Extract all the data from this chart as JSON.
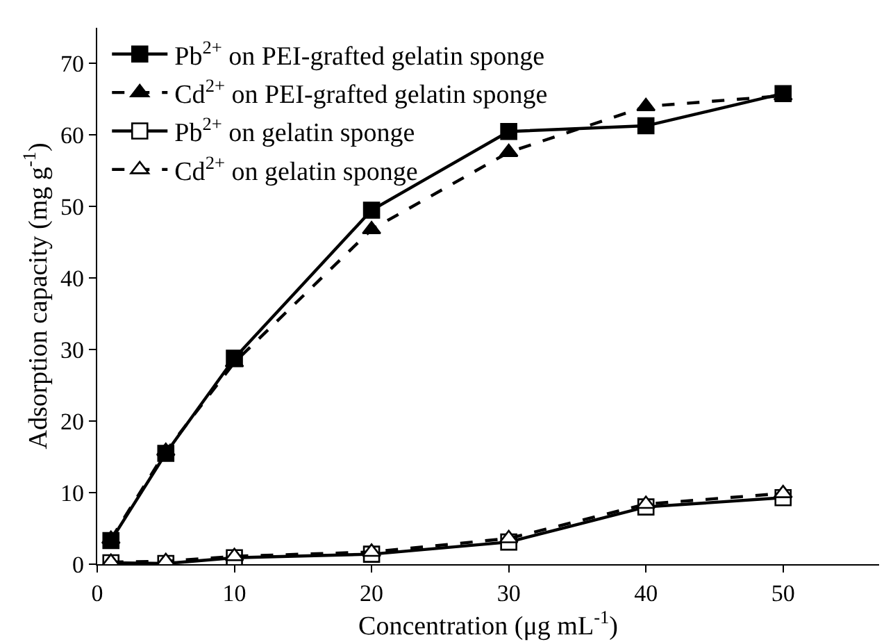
{
  "chart_data": {
    "type": "line",
    "xlabel": "Concentration (μg mL$^{-1}$)",
    "ylabel": "Adsorption capacity (mg g$^{-1}$)",
    "x": [
      1,
      5,
      10,
      20,
      30,
      40,
      50
    ],
    "series": [
      {
        "name": "Pb$^{2+}$ on PEI-grafted gelatin sponge",
        "color": "#000000",
        "values": [
          3.3,
          15.5,
          28.8,
          49.5,
          60.5,
          61.3,
          65.8
        ],
        "marker": "square",
        "line_style": "solid"
      },
      {
        "name": "Cd$^{2+}$ on PEI-grafted gelatin sponge",
        "color": "#000000",
        "values": [
          3.5,
          15.8,
          28.2,
          46.8,
          57.6,
          64.0,
          65.5
        ],
        "marker": "triangle",
        "line_style": "dashed"
      },
      {
        "name": "Pb$^{2+}$ on gelatin sponge",
        "color": "#000000",
        "values": [
          0.2,
          0.1,
          0.9,
          1.4,
          3.1,
          8.0,
          9.3
        ],
        "marker": "square",
        "colors": [
          "#ffffff",
          "#ffffff",
          "#ffffff",
          "#ffffff",
          "#ffffff",
          "#ffffff",
          "#ffffff"
        ],
        "line_style": "solid"
      },
      {
        "name": "Cd$^{2+}$ on gelatin sponge",
        "color": "#000000",
        "values": [
          0.3,
          0.4,
          1.1,
          1.7,
          3.6,
          8.4,
          9.9
        ],
        "marker": "triangle",
        "colors": [
          "#ffffff",
          "#ffffff",
          "#ffffff",
          "#ffffff",
          "#ffffff",
          "#ffffff",
          "#ffffff"
        ],
        "line_style": "dashed"
      }
    ],
    "xlim": [
      0,
      57
    ],
    "xticks": [
      0,
      10,
      20,
      30,
      40,
      50
    ],
    "ylim": [
      0,
      75
    ],
    "yticks": [
      0,
      10,
      20,
      30,
      40,
      50,
      60,
      70
    ],
    "legend": "top left"
  }
}
